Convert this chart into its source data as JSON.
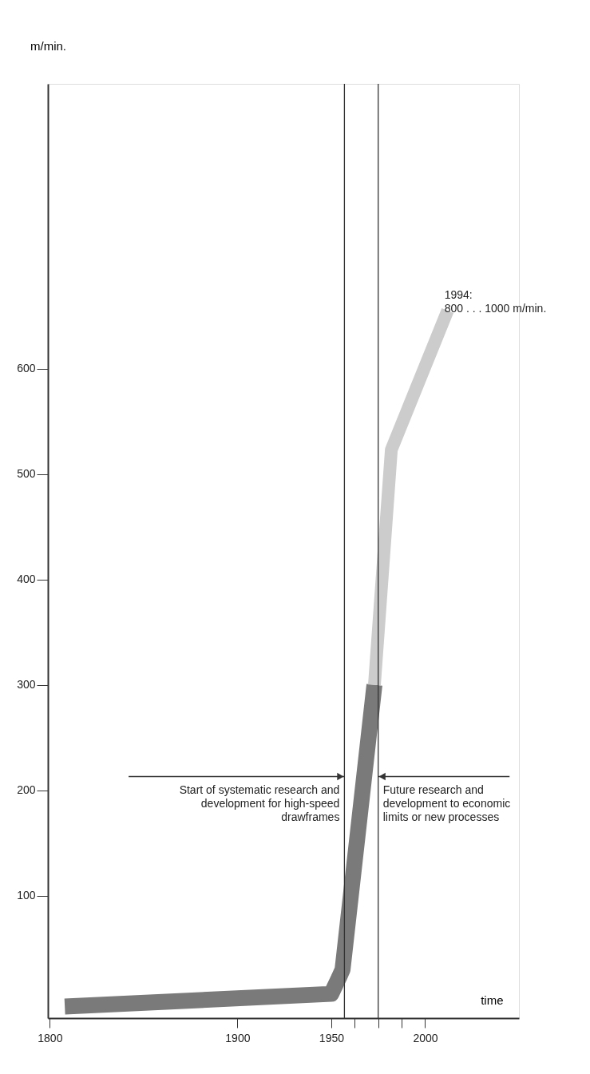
{
  "chart_data": {
    "type": "line",
    "xlabel": "time",
    "ylabel": "m/min.",
    "xlim": [
      1799,
      2050
    ],
    "ylim": [
      -16,
      870
    ],
    "xticks": [
      1800,
      1900,
      1950,
      2000,
      {
        "value": 1962.5,
        "label": null
      },
      {
        "value": 1975,
        "label": null
      },
      {
        "value": 1987.5,
        "label": null
      }
    ],
    "yticks": [
      100,
      200,
      300,
      400,
      500,
      600
    ],
    "series": [
      {
        "color": "#7a7a7a",
        "x": [
          1808,
          1950,
          1954,
          1956,
          1973
        ],
        "values": [
          -5,
          7,
          22,
          30,
          300
        ]
      },
      {
        "color": "#cccccc",
        "x": [
          1973,
          1982,
          2012
        ],
        "values": [
          300,
          523,
          655
        ]
      }
    ],
    "ref_lines": [
      {
        "axis": "x",
        "value": 1957,
        "color": "#333333"
      },
      {
        "axis": "x",
        "value": 1975,
        "color": "#333333"
      }
    ],
    "annotations": [
      {
        "text": "Start of systematic research and\ndevelopment for high-speed\ndrawframes",
        "x": 1957,
        "y": 213
      },
      {
        "text": "Future research and\ndevelopment to economic\nlimits or new processes",
        "x": 1975,
        "y": 213
      },
      {
        "text": "1994:\n800 . . . 1000 m/min.",
        "x": 2012,
        "y": 655
      }
    ],
    "grid": false
  }
}
